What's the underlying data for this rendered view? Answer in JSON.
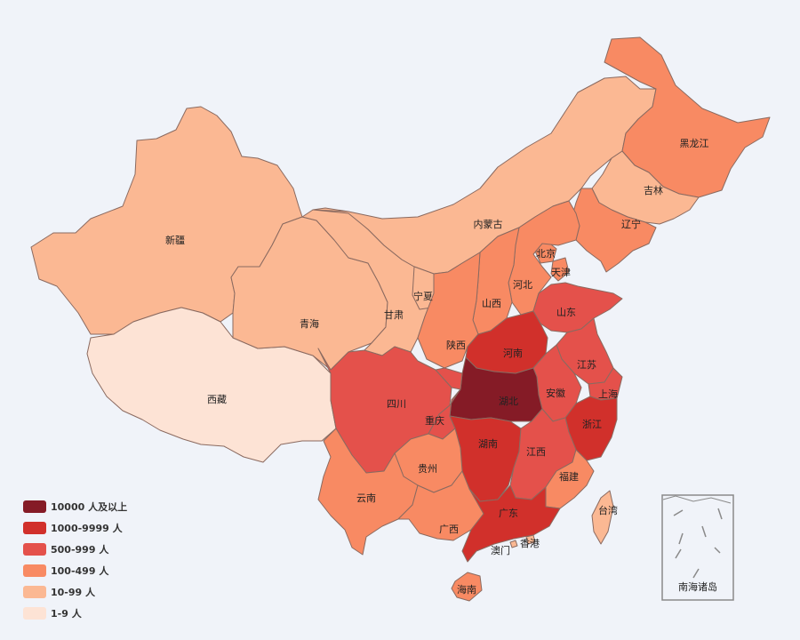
{
  "colors": {
    "level_10000_plus": "#851b26",
    "level_1000_9999": "#d1302b",
    "level_500_999": "#e4514b",
    "level_100_499": "#f88a63",
    "level_10_99": "#fbb893",
    "level_1_9": "#fde3d5",
    "background": "#f0f3f9",
    "border": "#8a6a60"
  },
  "legend": [
    {
      "label": "10000 人及以上",
      "color_key": "level_10000_plus"
    },
    {
      "label": "1000-9999 人",
      "color_key": "level_1000_9999"
    },
    {
      "label": "500-999 人",
      "color_key": "level_500_999"
    },
    {
      "label": "100-499 人",
      "color_key": "level_100_499"
    },
    {
      "label": "10-99 人",
      "color_key": "level_10_99"
    },
    {
      "label": "1-9 人",
      "color_key": "level_1_9"
    }
  ],
  "provinces": [
    {
      "name": "新疆",
      "level": "level_10_99"
    },
    {
      "name": "西藏",
      "level": "level_1_9"
    },
    {
      "name": "青海",
      "level": "level_10_99"
    },
    {
      "name": "甘肃",
      "level": "level_10_99"
    },
    {
      "name": "内蒙古",
      "level": "level_10_99"
    },
    {
      "name": "宁夏",
      "level": "level_10_99"
    },
    {
      "name": "黑龙江",
      "level": "level_100_499"
    },
    {
      "name": "吉林",
      "level": "level_10_99"
    },
    {
      "name": "辽宁",
      "level": "level_100_499"
    },
    {
      "name": "北京",
      "level": "level_100_499"
    },
    {
      "name": "天津",
      "level": "level_100_499"
    },
    {
      "name": "河北",
      "level": "level_100_499"
    },
    {
      "name": "山西",
      "level": "level_100_499"
    },
    {
      "name": "陕西",
      "level": "level_100_499"
    },
    {
      "name": "山东",
      "level": "level_500_999"
    },
    {
      "name": "河南",
      "level": "level_1000_9999"
    },
    {
      "name": "江苏",
      "level": "level_500_999"
    },
    {
      "name": "安徽",
      "level": "level_500_999"
    },
    {
      "name": "上海",
      "level": "level_500_999"
    },
    {
      "name": "湖北",
      "level": "level_10000_plus"
    },
    {
      "name": "四川",
      "level": "level_500_999"
    },
    {
      "name": "重庆",
      "level": "level_500_999"
    },
    {
      "name": "浙江",
      "level": "level_1000_9999"
    },
    {
      "name": "湖南",
      "level": "level_1000_9999"
    },
    {
      "name": "江西",
      "level": "level_500_999"
    },
    {
      "name": "贵州",
      "level": "level_100_499"
    },
    {
      "name": "云南",
      "level": "level_100_499"
    },
    {
      "name": "福建",
      "level": "level_100_499"
    },
    {
      "name": "广西",
      "level": "level_100_499"
    },
    {
      "name": "广东",
      "level": "level_1000_9999"
    },
    {
      "name": "台湾",
      "level": "level_10_99"
    },
    {
      "name": "香港",
      "level": "level_10_99"
    },
    {
      "name": "澳门",
      "level": "level_10_99"
    },
    {
      "name": "海南",
      "level": "level_100_499"
    }
  ],
  "inset_label": "南海诸岛"
}
